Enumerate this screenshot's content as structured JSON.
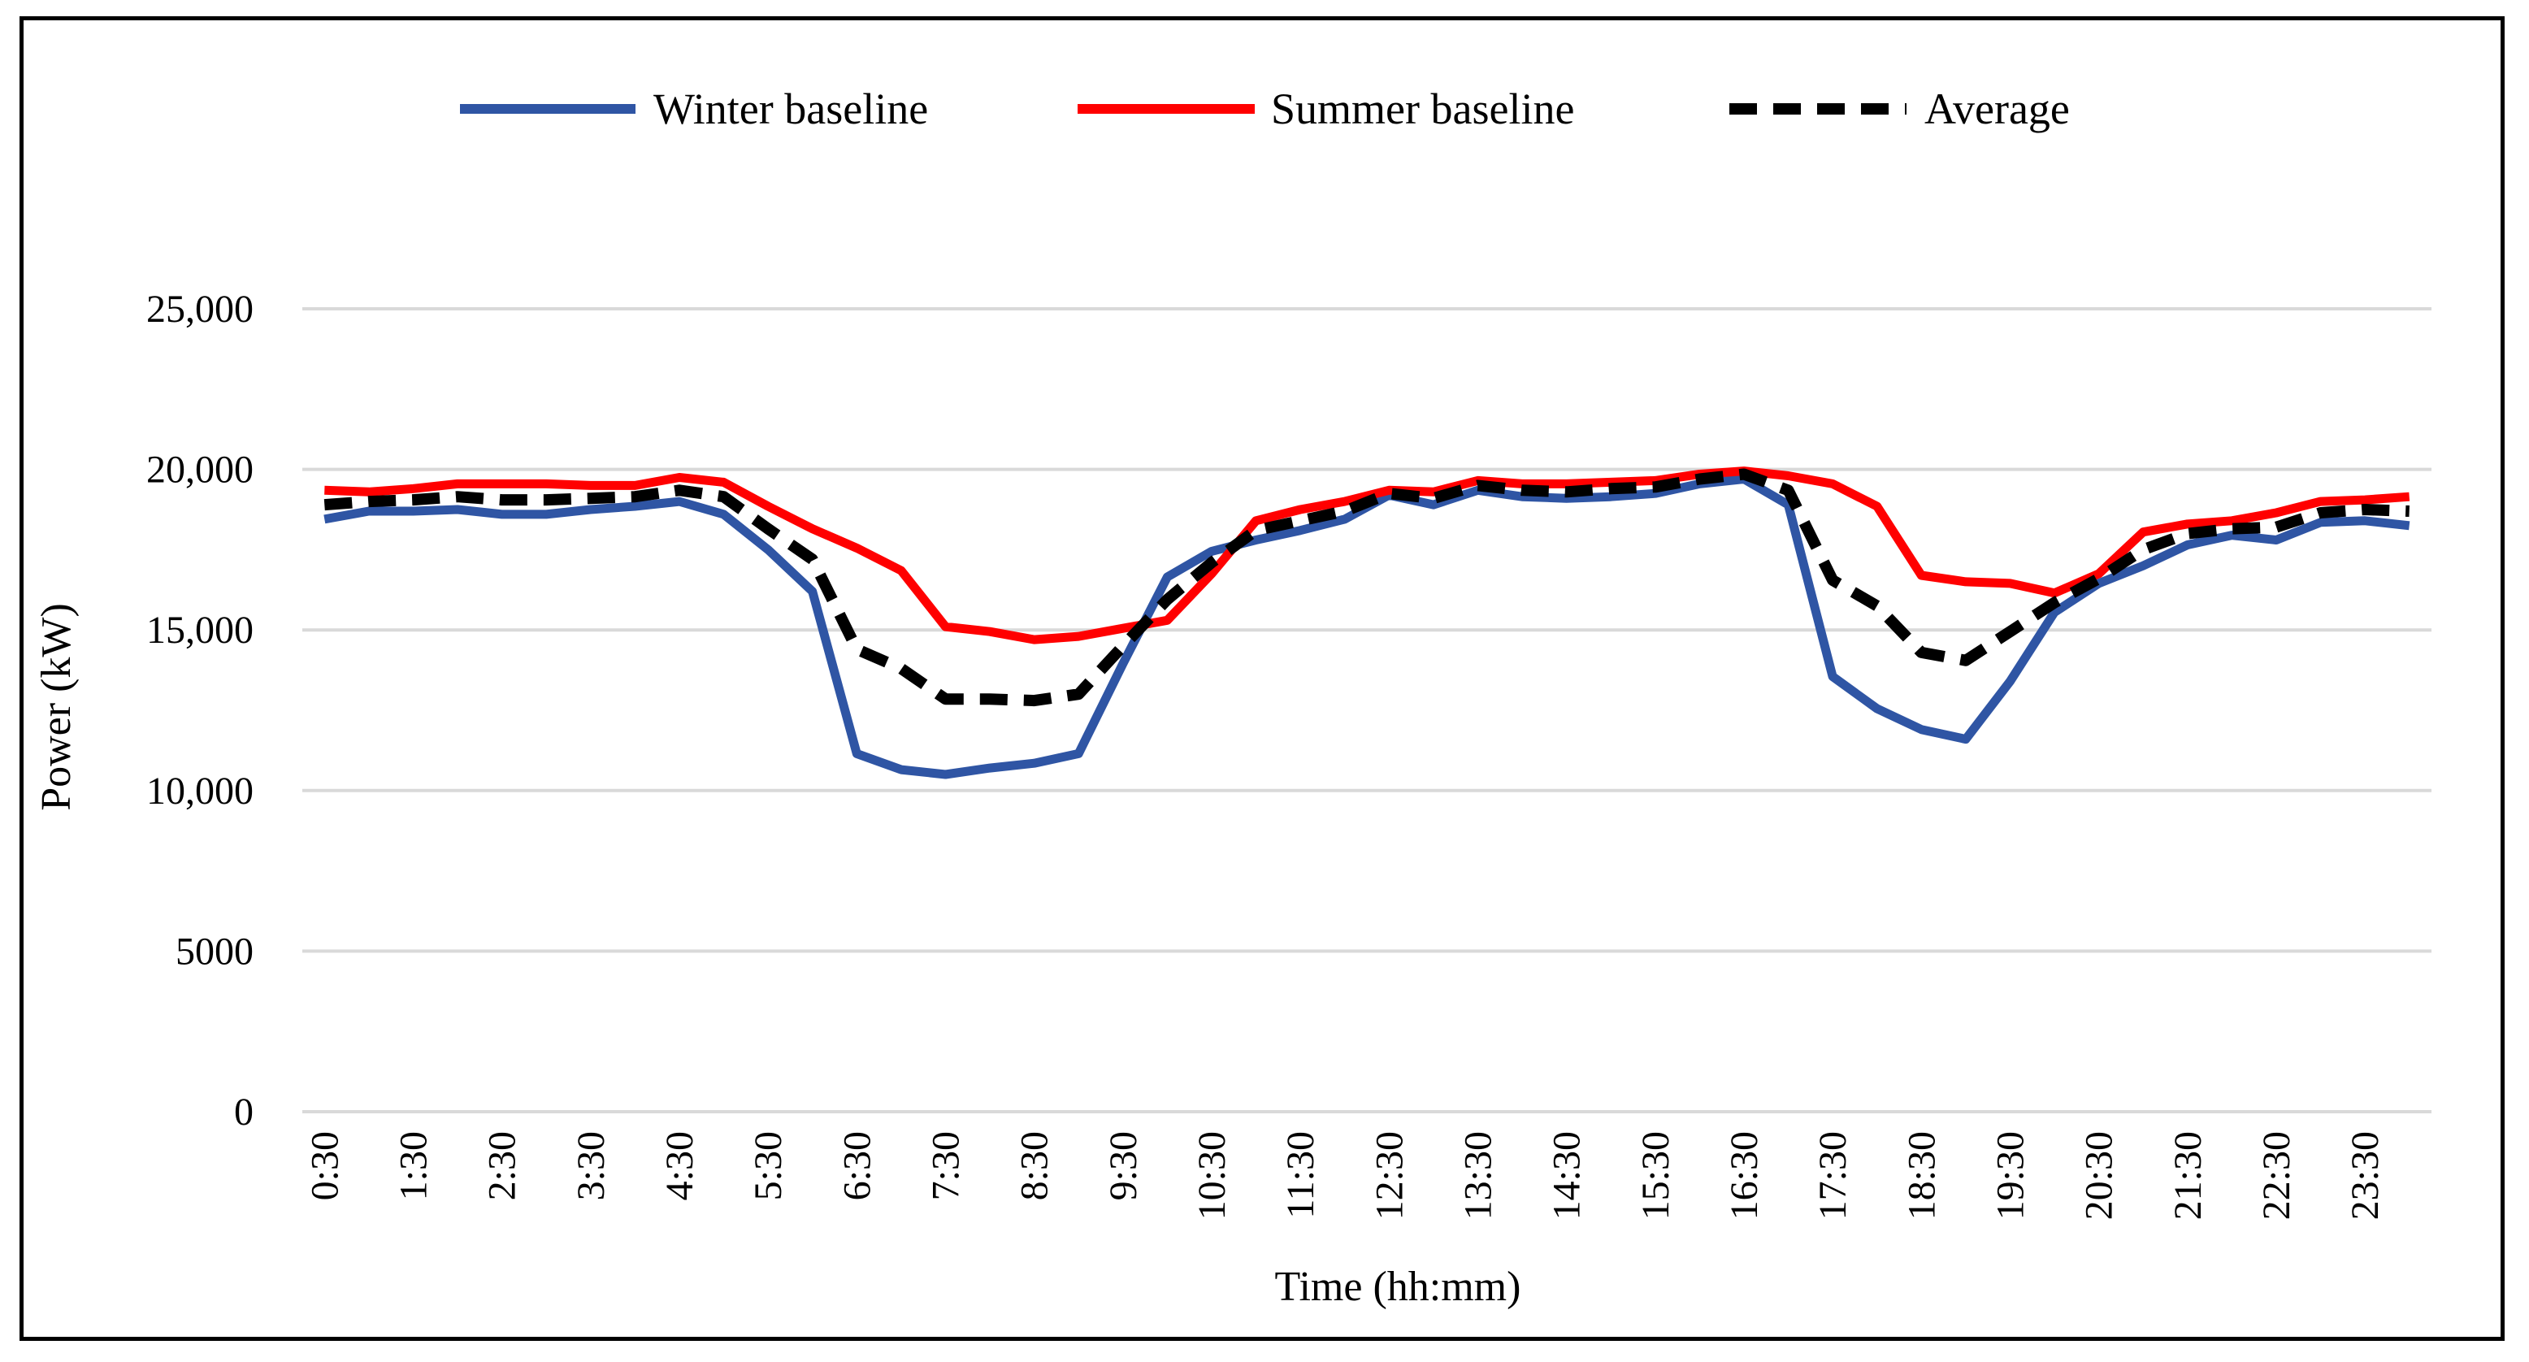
{
  "chart_data": {
    "type": "line",
    "title": "",
    "xlabel": "Time (hh:mm)",
    "ylabel": "Power (kW)",
    "ylim": [
      0,
      25000
    ],
    "yticks": [
      0,
      5000,
      10000,
      15000,
      20000,
      25000
    ],
    "ytick_labels": [
      "0",
      "5000",
      "10,000",
      "15,000",
      "20,000",
      "25,000"
    ],
    "grid": true,
    "legend_position": "top",
    "x_labels": [
      "0:30",
      "1:30",
      "2:30",
      "3:30",
      "4:30",
      "5:30",
      "6:30",
      "7:30",
      "8:30",
      "9:30",
      "10:30",
      "11:30",
      "12:30",
      "13:30",
      "14:30",
      "15:30",
      "16:30",
      "17:30",
      "18:30",
      "19:30",
      "20:30",
      "21:30",
      "22:30",
      "23:30"
    ],
    "x": [
      "0:30",
      "1:00",
      "1:30",
      "2:00",
      "2:30",
      "3:00",
      "3:30",
      "4:00",
      "4:30",
      "5:00",
      "5:30",
      "6:00",
      "6:30",
      "7:00",
      "7:30",
      "8:00",
      "8:30",
      "9:00",
      "9:30",
      "10:00",
      "10:30",
      "11:00",
      "11:30",
      "12:00",
      "12:30",
      "13:00",
      "13:30",
      "14:00",
      "14:30",
      "15:00",
      "15:30",
      "16:00",
      "16:30",
      "17:00",
      "17:30",
      "18:00",
      "18:30",
      "19:00",
      "19:30",
      "20:00",
      "20:30",
      "21:00",
      "21:30",
      "22:00",
      "22:30",
      "23:00",
      "23:30",
      "24:00"
    ],
    "series": [
      {
        "name": "Winter baseline",
        "color": "#2f55a4",
        "dash": "solid",
        "values": [
          18450,
          18700,
          18700,
          18750,
          18600,
          18600,
          18750,
          18850,
          19000,
          18600,
          17500,
          16200,
          11150,
          10650,
          10500,
          10700,
          10850,
          11150,
          13950,
          16650,
          17450,
          17800,
          18100,
          18450,
          19200,
          18900,
          19350,
          19150,
          19100,
          19150,
          19250,
          19550,
          19700,
          18900,
          13550,
          12550,
          11900,
          11600,
          13400,
          15550,
          16450,
          17000,
          17650,
          17950,
          17800,
          18350,
          18400,
          18250
        ]
      },
      {
        "name": "Summer baseline",
        "color": "#ff0000",
        "dash": "solid",
        "values": [
          19350,
          19300,
          19400,
          19550,
          19550,
          19550,
          19500,
          19500,
          19750,
          19600,
          18850,
          18150,
          17550,
          16850,
          15100,
          14950,
          14700,
          14800,
          15050,
          15300,
          16750,
          18400,
          18750,
          19000,
          19350,
          19300,
          19650,
          19550,
          19550,
          19600,
          19650,
          19850,
          19950,
          19800,
          19550,
          18850,
          16700,
          16500,
          16450,
          16150,
          16750,
          18050,
          18300,
          18400,
          18650,
          19000,
          19050,
          19150
        ]
      },
      {
        "name": "Average",
        "color": "#000000",
        "dash": "dashed",
        "values": [
          18900,
          19000,
          19050,
          19150,
          19050,
          19050,
          19100,
          19150,
          19350,
          19150,
          18150,
          17200,
          14400,
          13800,
          12850,
          12850,
          12800,
          13000,
          14500,
          15950,
          17100,
          18100,
          18400,
          18700,
          19250,
          19100,
          19500,
          19350,
          19300,
          19400,
          19450,
          19700,
          19850,
          19350,
          16550,
          15750,
          14300,
          14050,
          14950,
          15850,
          16600,
          17500,
          18000,
          18150,
          18200,
          18650,
          18750,
          18700
        ]
      }
    ]
  }
}
